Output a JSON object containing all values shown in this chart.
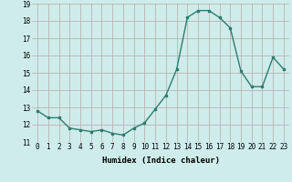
{
  "x": [
    0,
    1,
    2,
    3,
    4,
    5,
    6,
    7,
    8,
    9,
    10,
    11,
    12,
    13,
    14,
    15,
    16,
    17,
    18,
    19,
    20,
    21,
    22,
    23
  ],
  "y": [
    12.8,
    12.4,
    12.4,
    11.8,
    11.7,
    11.6,
    11.7,
    11.5,
    11.4,
    11.8,
    12.1,
    12.9,
    13.7,
    15.2,
    18.2,
    18.6,
    18.6,
    18.2,
    17.6,
    15.1,
    14.2,
    14.2,
    15.9,
    15.2
  ],
  "line_color": "#2d7d6e",
  "marker": "s",
  "markersize": 1.8,
  "linewidth": 1.0,
  "xlabel": "Humidex (Indice chaleur)",
  "ylim": [
    11,
    19
  ],
  "xlim": [
    -0.5,
    23.5
  ],
  "yticks": [
    11,
    12,
    13,
    14,
    15,
    16,
    17,
    18,
    19
  ],
  "xticks": [
    0,
    1,
    2,
    3,
    4,
    5,
    6,
    7,
    8,
    9,
    10,
    11,
    12,
    13,
    14,
    15,
    16,
    17,
    18,
    19,
    20,
    21,
    22,
    23
  ],
  "bg_color": "#ceecea",
  "grid_color": "#b8a8a8",
  "tick_font_size": 5.5,
  "xlabel_font_size": 6.5
}
